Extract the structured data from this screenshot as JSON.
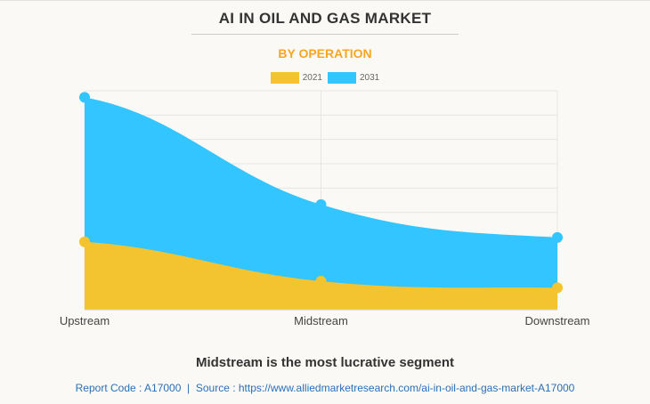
{
  "chart_data": {
    "type": "area",
    "title": "AI IN OIL AND GAS MARKET",
    "subtitle": "BY OPERATION",
    "categories": [
      "Upstream",
      "Midstream",
      "Downstream"
    ],
    "series": [
      {
        "name": "2021",
        "values": [
          31,
          13,
          10
        ],
        "color": "#f4c430"
      },
      {
        "name": "2031",
        "values": [
          97,
          48,
          33
        ],
        "color": "#33c5ff"
      }
    ],
    "ylim": [
      0,
      100
    ],
    "grid": true,
    "legend": "top-center",
    "xlabel": "",
    "ylabel": ""
  },
  "footer": {
    "headline": "Midstream is the most lucrative segment",
    "source": "Report Code : A17000  |  Source : https://www.alliedmarketresearch.com/ai-in-oil-and-gas-market-A17000"
  }
}
